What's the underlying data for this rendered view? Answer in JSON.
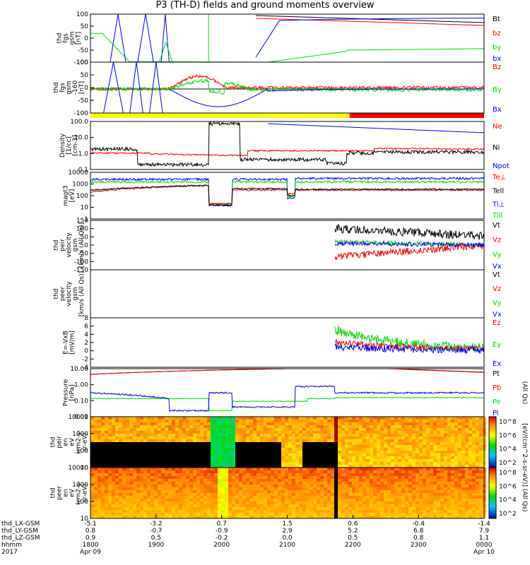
{
  "title": "P3 (TH-D) fields and ground moments overview",
  "colors": {
    "black": "#000000",
    "red": "#ff0000",
    "green": "#00dd00",
    "blue": "#0000ff",
    "yellow": "#ffff00"
  },
  "chart_data": {
    "type": "line",
    "x_range_hours": [
      18,
      24
    ],
    "panels": [
      {
        "id": "fgs",
        "ylabel": [
          "thd",
          "fgs",
          "gsm",
          "[nT]"
        ],
        "yticks": [
          "100",
          "50",
          "0",
          "-50",
          "-100"
        ],
        "ylim": [
          -100,
          100
        ],
        "legend": [
          {
            "text": "Bt",
            "color": "black"
          },
          {
            "text": "bz",
            "color": "red"
          },
          {
            "text": "by",
            "color": "green"
          },
          {
            "text": "bx",
            "color": "blue"
          }
        ]
      },
      {
        "id": "fgs_dsl",
        "ylabel": [
          "thd",
          "fgs",
          "gsm",
          "-160",
          "[nT]"
        ],
        "yticks": [
          "100",
          "50",
          "0",
          "-50",
          "-100"
        ],
        "ylim": [
          -125,
          125
        ],
        "legend": [
          {
            "text": "Bz",
            "color": "red"
          },
          {
            "text": "By",
            "color": "green"
          },
          {
            "text": "Bx",
            "color": "blue"
          }
        ]
      },
      {
        "id": "density",
        "ylabel": [
          "Density",
          "[1/cc]",
          "[cm-3]"
        ],
        "yticks": [
          "100.0",
          "10.0",
          "1.0",
          "0.1"
        ],
        "ylim": [
          0.05,
          300
        ],
        "log": true,
        "legend": [
          {
            "text": "Ne",
            "color": "red"
          },
          {
            "text": "Ni",
            "color": "black"
          },
          {
            "text": "Npot",
            "color": "blue"
          }
        ]
      },
      {
        "id": "temp",
        "ylabel": [
          "magt3",
          "[eV]"
        ],
        "yticks": [
          "10000",
          "1000",
          "100",
          "10",
          "1"
        ],
        "ylim": [
          1,
          10000
        ],
        "log": true,
        "legend": [
          {
            "text": "Te⊥",
            "color": "red"
          },
          {
            "text": "Tell",
            "color": "black"
          },
          {
            "text": "Ti⊥",
            "color": "blue"
          },
          {
            "text": "Till",
            "color": "green"
          }
        ]
      },
      {
        "id": "vel_ion",
        "ylabel": [
          "thd",
          "peir",
          "velocity",
          "gsm",
          "[km/s (All Qs)]"
        ],
        "yticks": [
          "150",
          "100",
          "50",
          "0",
          "-50",
          "-100",
          "-150"
        ],
        "ylim": [
          -150,
          150
        ],
        "legend": [
          {
            "text": "Vt",
            "color": "black"
          },
          {
            "text": "Vz",
            "color": "red"
          },
          {
            "text": "Vy",
            "color": "green"
          },
          {
            "text": "Vx",
            "color": "blue"
          }
        ]
      },
      {
        "id": "vel_elec",
        "ylabel": [
          "thd",
          "peer",
          "velocity",
          "gsm",
          "[km/s (All Qs)]"
        ],
        "yticks": [],
        "ylim": [
          -150,
          150
        ],
        "legend": [
          {
            "text": "Vt",
            "color": "black"
          },
          {
            "text": "Vz",
            "color": "red"
          },
          {
            "text": "Vy",
            "color": "green"
          },
          {
            "text": "Vx",
            "color": "blue"
          }
        ]
      },
      {
        "id": "efield",
        "ylabel": [
          "E=-VxB",
          "[mV/m]"
        ],
        "yticks": [
          "8",
          "6",
          "4",
          "2",
          "0",
          "-2",
          "-4"
        ],
        "ylim": [
          -4,
          8
        ],
        "legend": [
          {
            "text": "Ez",
            "color": "red"
          },
          {
            "text": "Ey",
            "color": "green"
          },
          {
            "text": "Ex",
            "color": "blue"
          }
        ]
      },
      {
        "id": "pressure",
        "ylabel": [
          "Pressure",
          "[nPa]"
        ],
        "yticks": [
          "10.00",
          "1.00",
          "0.10",
          "0.01"
        ],
        "ylim": [
          0.003,
          30
        ],
        "log": true,
        "legend": [
          {
            "text": "Pt",
            "color": "black"
          },
          {
            "text": "Pb",
            "color": "red"
          },
          {
            "text": "Pe",
            "color": "green"
          },
          {
            "text": "Pi",
            "color": "blue"
          }
        ],
        "right_label": "(All Qs)"
      },
      {
        "id": "ion_spec",
        "ylabel": [
          "thd",
          "peir",
          "en",
          "eV",
          "(cm2-s-",
          "sr-eV)"
        ],
        "yticks": [
          "10000",
          "1000",
          "100",
          "10"
        ],
        "type": "heatmap"
      },
      {
        "id": "elec_spec",
        "ylabel": [
          "thd",
          "peer",
          "en",
          "eV",
          "(cm2-s-",
          "sr-eV)"
        ],
        "yticks": [
          "10000",
          "1000",
          "100",
          "10"
        ],
        "type": "heatmap"
      }
    ],
    "colorbar": {
      "label": "[eV/(cm^2-s-sr-eV)] (All Qs)",
      "ticks1": [
        "10^8",
        "10^6",
        "10^4",
        "10^2"
      ],
      "ticks2": [
        "10^8",
        "10^6",
        "10^4",
        "10^2"
      ]
    },
    "bottom_axis": {
      "rows": [
        {
          "label": "thd_LX-GSM",
          "values": [
            "-5.1",
            "-3.2",
            "0.7",
            "1.5",
            "0.6",
            "-0.4",
            "-1.4"
          ]
        },
        {
          "label": "thd_LY-GSM",
          "values": [
            "0.8",
            "-0.7",
            "-0.9",
            "2.9",
            "5.2",
            "6.8",
            "7.9"
          ]
        },
        {
          "label": "thd_LZ-GSM",
          "values": [
            "0.9",
            "0.5",
            "-0.2",
            "0.0",
            "0.5",
            "0.8",
            "1.1"
          ]
        },
        {
          "label": "hhmm",
          "values": [
            "1800",
            "1900",
            "2000",
            "2100",
            "2200",
            "2300",
            "0000"
          ]
        },
        {
          "label": "2017",
          "values": [
            "Apr 09",
            "",
            "",
            "",
            "",
            "",
            "Apr 10"
          ]
        }
      ]
    },
    "mode_bar": [
      {
        "from": 18,
        "to": 21.95,
        "color": "yellow"
      },
      {
        "from": 21.95,
        "to": 24,
        "color": "red"
      }
    ]
  }
}
